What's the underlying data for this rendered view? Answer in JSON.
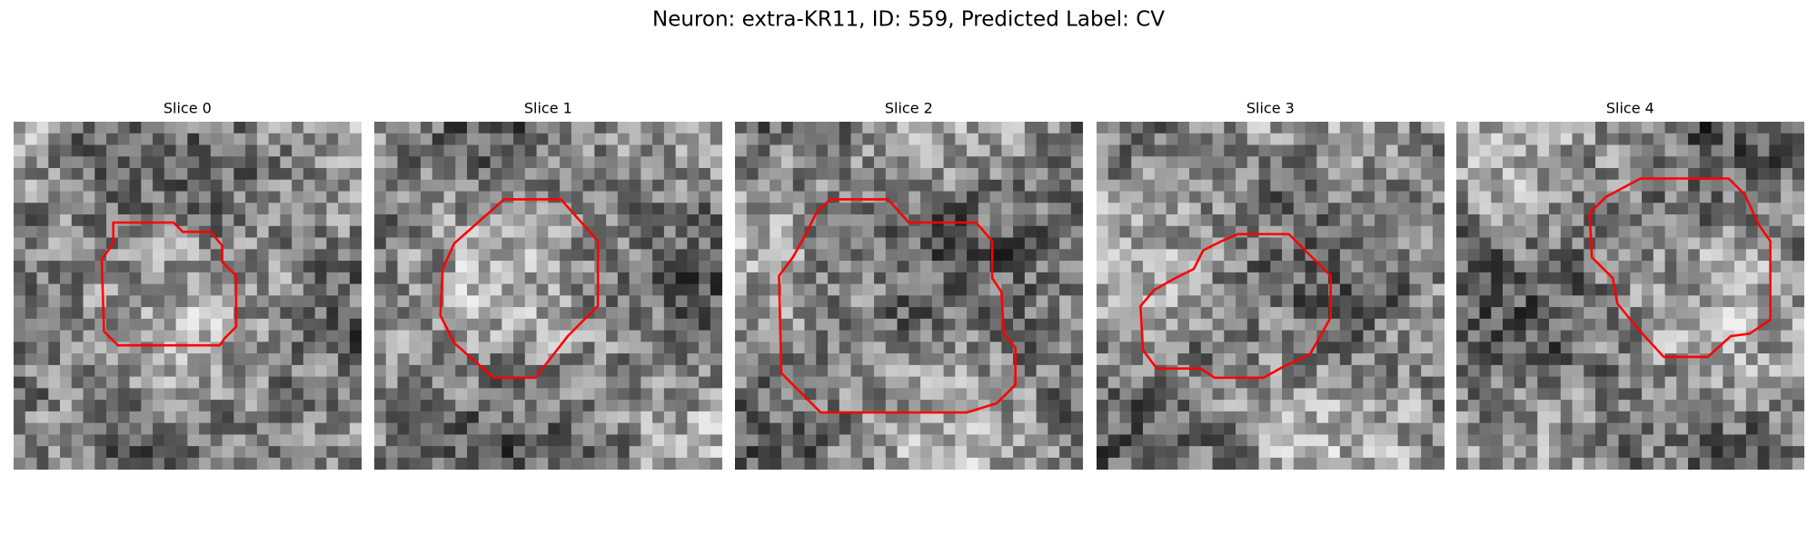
{
  "title": "Neuron: extra-KR11, ID: 559, Predicted Label: CV",
  "panels": [
    {
      "title": "Slice 0"
    },
    {
      "title": "Slice 1"
    },
    {
      "title": "Slice 2"
    },
    {
      "title": "Slice 3"
    },
    {
      "title": "Slice 4"
    }
  ]
}
